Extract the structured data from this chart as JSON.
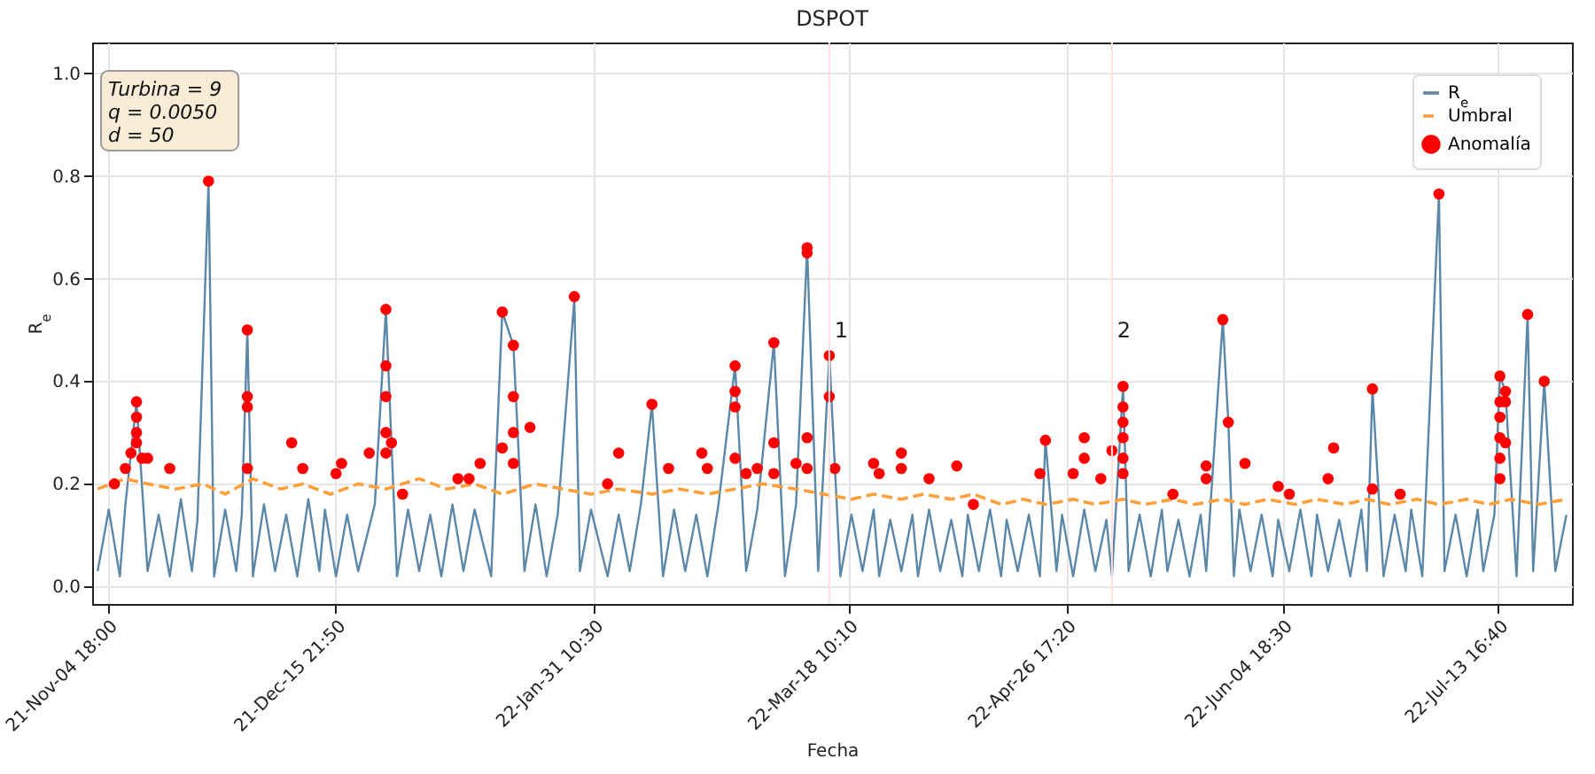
{
  "chart_data": {
    "type": "line",
    "title": "DSPOT",
    "xlabel": "Fecha",
    "ylabel": "R$_{e}$",
    "xlim": [
      "2021-11-02",
      "2022-07-27"
    ],
    "xticks": [
      {
        "value": "2021-11-04T18:00",
        "label": "21-Nov-04 18:00"
      },
      {
        "value": "2021-12-15T21:50",
        "label": "21-Dec-15 21:50"
      },
      {
        "value": "2022-01-31T10:30",
        "label": "22-Jan-31 10:30"
      },
      {
        "value": "2022-03-18T10:10",
        "label": "22-Mar-18 10:10"
      },
      {
        "value": "2022-04-26T17:20",
        "label": "22-Apr-26 17:20"
      },
      {
        "value": "2022-06-04T18:30",
        "label": "22-Jun-04 18:30"
      },
      {
        "value": "2022-07-13T16:40",
        "label": "22-Jul-13 16:40"
      }
    ],
    "ylim": [
      -0.034,
      1.06
    ],
    "yticks": [
      {
        "value": 0,
        "label": "0.0"
      },
      {
        "value": 0.2,
        "label": "0.2"
      },
      {
        "value": 0.4,
        "label": "0.4"
      },
      {
        "value": 0.6,
        "label": "0.6"
      },
      {
        "value": 0.8,
        "label": "0.8"
      },
      {
        "value": 1,
        "label": "1.0"
      }
    ],
    "grid": true,
    "legend": "top right",
    "annotations": [
      "Turbina = 9",
      "q = 0.0050",
      "d = 50",
      {
        "text": "1",
        "x": "2022-03-15",
        "y": 0.5
      },
      {
        "text": "2",
        "x": "2022-05-05",
        "y": 0.5
      }
    ],
    "ref_lines": [
      {
        "axis": "x",
        "value": "2022-03-15",
        "color": "#ffe0e0"
      },
      {
        "axis": "x",
        "value": "2022-05-05",
        "color": "#ffe0e0"
      }
    ],
    "series": [
      {
        "name": "R$_{e}$",
        "color": "#5b87a8",
        "line_style": "solid",
        "x": [
          "2021-11-03",
          "2021-11-05",
          "2021-11-07",
          "2021-11-08",
          "2021-11-10",
          "2021-11-12",
          "2021-11-14",
          "2021-11-16",
          "2021-11-18",
          "2021-11-20",
          "2021-11-21",
          "2021-11-23",
          "2021-11-24",
          "2021-11-26",
          "2021-11-28",
          "2021-11-29",
          "2021-11-30",
          "2021-12-01",
          "2021-12-03",
          "2021-12-05",
          "2021-12-07",
          "2021-12-09",
          "2021-12-11",
          "2021-12-13",
          "2021-12-14",
          "2021-12-16",
          "2021-12-18",
          "2021-12-20",
          "2021-12-23",
          "2021-12-25",
          "2021-12-27",
          "2021-12-29",
          "2021-12-31",
          "2022-01-02",
          "2022-01-04",
          "2022-01-06",
          "2022-01-08",
          "2022-01-10",
          "2022-01-13",
          "2022-01-15",
          "2022-01-17",
          "2022-01-19",
          "2022-01-21",
          "2022-01-23",
          "2022-01-25",
          "2022-01-28",
          "2022-01-29",
          "2022-01-31",
          "2022-02-03",
          "2022-02-05",
          "2022-02-07",
          "2022-02-09",
          "2022-02-11",
          "2022-02-13",
          "2022-02-15",
          "2022-02-17",
          "2022-02-19",
          "2022-02-21",
          "2022-02-23",
          "2022-02-26",
          "2022-02-28",
          "2022-03-02",
          "2022-03-05",
          "2022-03-07",
          "2022-03-09",
          "2022-03-11",
          "2022-03-13",
          "2022-03-15",
          "2022-03-17",
          "2022-03-19",
          "2022-03-21",
          "2022-03-23",
          "2022-03-24",
          "2022-03-26",
          "2022-03-28",
          "2022-03-30",
          "2022-03-31",
          "2022-04-02",
          "2022-04-04",
          "2022-04-06",
          "2022-04-08",
          "2022-04-09",
          "2022-04-11",
          "2022-04-13",
          "2022-04-15",
          "2022-04-16",
          "2022-04-18",
          "2022-04-20",
          "2022-04-22",
          "2022-04-23",
          "2022-04-25",
          "2022-04-26",
          "2022-04-28",
          "2022-04-30",
          "2022-05-02",
          "2022-05-04",
          "2022-05-05",
          "2022-05-07",
          "2022-05-08",
          "2022-05-10",
          "2022-05-12",
          "2022-05-14",
          "2022-05-15",
          "2022-05-17",
          "2022-05-19",
          "2022-05-21",
          "2022-05-22",
          "2022-05-25",
          "2022-05-26",
          "2022-05-27",
          "2022-05-28",
          "2022-05-30",
          "2022-06-01",
          "2022-06-03",
          "2022-06-04",
          "2022-06-06",
          "2022-06-08",
          "2022-06-10",
          "2022-06-11",
          "2022-06-13",
          "2022-06-15",
          "2022-06-17",
          "2022-06-19",
          "2022-06-20",
          "2022-06-21",
          "2022-06-23",
          "2022-06-25",
          "2022-06-27",
          "2022-06-28",
          "2022-06-30",
          "2022-07-03",
          "2022-07-04",
          "2022-07-06",
          "2022-07-08",
          "2022-07-10",
          "2022-07-11",
          "2022-07-13",
          "2022-07-14",
          "2022-07-15",
          "2022-07-17",
          "2022-07-19",
          "2022-07-20",
          "2022-07-22",
          "2022-07-24",
          "2022-07-26"
        ],
        "values": [
          0.03,
          0.15,
          0.02,
          0.16,
          0.36,
          0.03,
          0.14,
          0.02,
          0.17,
          0.03,
          0.13,
          0.79,
          0.02,
          0.15,
          0.03,
          0.14,
          0.5,
          0.02,
          0.16,
          0.03,
          0.14,
          0.02,
          0.17,
          0.03,
          0.15,
          0.02,
          0.14,
          0.03,
          0.16,
          0.54,
          0.02,
          0.15,
          0.03,
          0.14,
          0.02,
          0.16,
          0.03,
          0.15,
          0.02,
          0.535,
          0.47,
          0.03,
          0.16,
          0.02,
          0.14,
          0.56,
          0.03,
          0.15,
          0.02,
          0.14,
          0.03,
          0.16,
          0.355,
          0.02,
          0.15,
          0.03,
          0.14,
          0.02,
          0.16,
          0.43,
          0.03,
          0.15,
          0.475,
          0.02,
          0.16,
          0.66,
          0.03,
          0.45,
          0.02,
          0.14,
          0.03,
          0.15,
          0.02,
          0.13,
          0.03,
          0.14,
          0.02,
          0.15,
          0.03,
          0.13,
          0.02,
          0.14,
          0.03,
          0.15,
          0.02,
          0.13,
          0.03,
          0.14,
          0.02,
          0.285,
          0.03,
          0.14,
          0.02,
          0.15,
          0.03,
          0.13,
          0.02,
          0.39,
          0.03,
          0.14,
          0.02,
          0.15,
          0.03,
          0.13,
          0.02,
          0.14,
          0.03,
          0.52,
          0.32,
          0.02,
          0.15,
          0.03,
          0.14,
          0.02,
          0.13,
          0.03,
          0.15,
          0.02,
          0.14,
          0.03,
          0.13,
          0.02,
          0.15,
          0.03,
          0.385,
          0.02,
          0.14,
          0.03,
          0.15,
          0.02,
          0.765,
          0.03,
          0.14,
          0.02,
          0.15,
          0.03,
          0.14,
          0.41,
          0.38,
          0.02,
          0.53,
          0.03,
          0.4,
          0.03,
          0.14
        ]
      },
      {
        "name": "Umbral",
        "color": "#ff9f3a",
        "line_style": "dashed",
        "x": [
          "2021-11-03",
          "2021-11-08",
          "2021-11-12",
          "2021-11-17",
          "2021-11-22",
          "2021-11-26",
          "2021-12-01",
          "2021-12-06",
          "2021-12-10",
          "2021-12-15",
          "2021-12-20",
          "2021-12-25",
          "2021-12-31",
          "2022-01-05",
          "2022-01-10",
          "2022-01-15",
          "2022-01-21",
          "2022-01-26",
          "2022-01-31",
          "2022-02-05",
          "2022-02-11",
          "2022-02-16",
          "2022-02-21",
          "2022-02-26",
          "2022-03-03",
          "2022-03-09",
          "2022-03-14",
          "2022-03-19",
          "2022-03-23",
          "2022-03-28",
          "2022-04-01",
          "2022-04-06",
          "2022-04-10",
          "2022-04-15",
          "2022-04-19",
          "2022-04-23",
          "2022-04-28",
          "2022-05-02",
          "2022-05-07",
          "2022-05-11",
          "2022-05-16",
          "2022-05-20",
          "2022-05-25",
          "2022-05-29",
          "2022-06-02",
          "2022-06-07",
          "2022-06-11",
          "2022-06-16",
          "2022-06-20",
          "2022-06-24",
          "2022-06-29",
          "2022-07-03",
          "2022-07-08",
          "2022-07-12",
          "2022-07-16",
          "2022-07-21",
          "2022-07-26"
        ],
        "values": [
          0.19,
          0.21,
          0.2,
          0.19,
          0.2,
          0.18,
          0.21,
          0.19,
          0.2,
          0.18,
          0.2,
          0.19,
          0.21,
          0.19,
          0.2,
          0.18,
          0.2,
          0.19,
          0.18,
          0.19,
          0.18,
          0.19,
          0.18,
          0.19,
          0.2,
          0.19,
          0.18,
          0.17,
          0.18,
          0.17,
          0.18,
          0.17,
          0.18,
          0.16,
          0.17,
          0.16,
          0.17,
          0.16,
          0.17,
          0.16,
          0.17,
          0.16,
          0.17,
          0.16,
          0.17,
          0.16,
          0.17,
          0.16,
          0.17,
          0.16,
          0.17,
          0.16,
          0.17,
          0.16,
          0.17,
          0.16,
          0.17
        ]
      },
      {
        "name": "Anomalía",
        "type": "scatter",
        "color": "#ff0000",
        "marker": "circle",
        "x": [
          "2021-11-06",
          "2021-11-08",
          "2021-11-09",
          "2021-11-10",
          "2021-11-10",
          "2021-11-10",
          "2021-11-10",
          "2021-11-11",
          "2021-11-12",
          "2021-11-16",
          "2021-11-23",
          "2021-11-30",
          "2021-11-30",
          "2021-11-30",
          "2021-11-30",
          "2021-12-08",
          "2021-12-10",
          "2021-12-16",
          "2021-12-17",
          "2021-12-22",
          "2021-12-25",
          "2021-12-25",
          "2021-12-25",
          "2021-12-25",
          "2021-12-25",
          "2021-12-26",
          "2021-12-28",
          "2022-01-07",
          "2022-01-09",
          "2022-01-11",
          "2022-01-15",
          "2022-01-15",
          "2022-01-17",
          "2022-01-17",
          "2022-01-17",
          "2022-01-17",
          "2022-01-20",
          "2022-01-28",
          "2022-02-03",
          "2022-02-05",
          "2022-02-11",
          "2022-02-14",
          "2022-02-20",
          "2022-02-21",
          "2022-02-26",
          "2022-02-26",
          "2022-02-26",
          "2022-02-26",
          "2022-02-28",
          "2022-03-02",
          "2022-03-05",
          "2022-03-05",
          "2022-03-05",
          "2022-03-09",
          "2022-03-11",
          "2022-03-11",
          "2022-03-11",
          "2022-03-11",
          "2022-03-15",
          "2022-03-15",
          "2022-03-16",
          "2022-03-23",
          "2022-03-24",
          "2022-03-28",
          "2022-03-28",
          "2022-04-02",
          "2022-04-07",
          "2022-04-10",
          "2022-04-22",
          "2022-04-23",
          "2022-04-28",
          "2022-04-30",
          "2022-04-30",
          "2022-05-03",
          "2022-05-05",
          "2022-05-07",
          "2022-05-07",
          "2022-05-07",
          "2022-05-07",
          "2022-05-07",
          "2022-05-07",
          "2022-05-16",
          "2022-05-22",
          "2022-05-22",
          "2022-05-25",
          "2022-05-26",
          "2022-05-29",
          "2022-06-04",
          "2022-06-06",
          "2022-06-13",
          "2022-06-14",
          "2022-06-21",
          "2022-06-21",
          "2022-06-26",
          "2022-07-03",
          "2022-07-14",
          "2022-07-14",
          "2022-07-14",
          "2022-07-14",
          "2022-07-14",
          "2022-07-14",
          "2022-07-15",
          "2022-07-15",
          "2022-07-15",
          "2022-07-19",
          "2022-07-22"
        ],
        "values": [
          0.2,
          0.23,
          0.26,
          0.36,
          0.33,
          0.3,
          0.28,
          0.25,
          0.25,
          0.23,
          0.79,
          0.5,
          0.37,
          0.35,
          0.23,
          0.28,
          0.23,
          0.22,
          0.24,
          0.26,
          0.54,
          0.43,
          0.37,
          0.3,
          0.26,
          0.28,
          0.18,
          0.21,
          0.21,
          0.24,
          0.535,
          0.27,
          0.47,
          0.37,
          0.3,
          0.24,
          0.31,
          0.565,
          0.2,
          0.26,
          0.355,
          0.23,
          0.26,
          0.23,
          0.43,
          0.38,
          0.35,
          0.25,
          0.22,
          0.23,
          0.475,
          0.28,
          0.22,
          0.24,
          0.66,
          0.65,
          0.29,
          0.23,
          0.45,
          0.37,
          0.23,
          0.24,
          0.22,
          0.26,
          0.23,
          0.21,
          0.235,
          0.16,
          0.22,
          0.285,
          0.22,
          0.29,
          0.25,
          0.21,
          0.265,
          0.39,
          0.35,
          0.32,
          0.29,
          0.25,
          0.22,
          0.18,
          0.235,
          0.21,
          0.52,
          0.32,
          0.24,
          0.195,
          0.18,
          0.21,
          0.27,
          0.385,
          0.19,
          0.18,
          0.765,
          0.41,
          0.36,
          0.33,
          0.29,
          0.25,
          0.21,
          0.36,
          0.38,
          0.28,
          0.53,
          0.4
        ]
      }
    ]
  }
}
